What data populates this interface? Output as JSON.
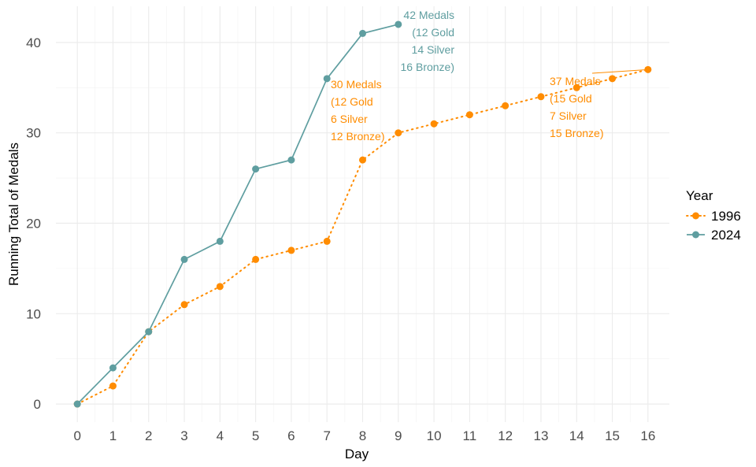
{
  "chart_data": {
    "type": "line",
    "xlabel": "Day",
    "ylabel": "Running Total of Medals",
    "xlim": [
      -0.6,
      16.6
    ],
    "ylim": [
      -2,
      44
    ],
    "x_ticks": [
      0,
      1,
      2,
      3,
      4,
      5,
      6,
      7,
      8,
      9,
      10,
      11,
      12,
      13,
      14,
      15,
      16
    ],
    "y_ticks": [
      0,
      10,
      20,
      30,
      40
    ],
    "grid": true,
    "legend": {
      "title": "Year",
      "position": "right"
    },
    "series": [
      {
        "name": "1996",
        "color": "#ff8c00",
        "line_style": "dotted",
        "x": [
          0,
          1,
          2,
          3,
          4,
          5,
          6,
          7,
          8,
          9,
          10,
          11,
          12,
          13,
          14,
          15,
          16
        ],
        "y": [
          0,
          2,
          8,
          11,
          13,
          16,
          17,
          18,
          27,
          30,
          31,
          32,
          33,
          34,
          35,
          36,
          37
        ]
      },
      {
        "name": "2024",
        "color": "#5f9ea0",
        "line_style": "solid",
        "x": [
          0,
          1,
          2,
          3,
          4,
          5,
          6,
          7,
          8,
          9
        ],
        "y": [
          0,
          4,
          8,
          16,
          18,
          26,
          27,
          36,
          41,
          42
        ]
      }
    ],
    "annotations": [
      {
        "series": "2024",
        "lines": [
          "42 Medals",
          "(12 Gold",
          "14 Silver",
          "16 Bronze)"
        ],
        "x": 9,
        "y": 42,
        "align": "right"
      },
      {
        "series": "1996",
        "lines": [
          "30 Medals",
          "(12 Gold",
          "6 Silver",
          "12 Bronze)"
        ],
        "x": 9,
        "y": 30,
        "align": "left"
      },
      {
        "series": "1996",
        "lines": [
          "37 Medals",
          "(15 Gold",
          "7 Silver",
          "15 Bronze)"
        ],
        "x": 16,
        "y": 37,
        "align": "left"
      }
    ]
  }
}
